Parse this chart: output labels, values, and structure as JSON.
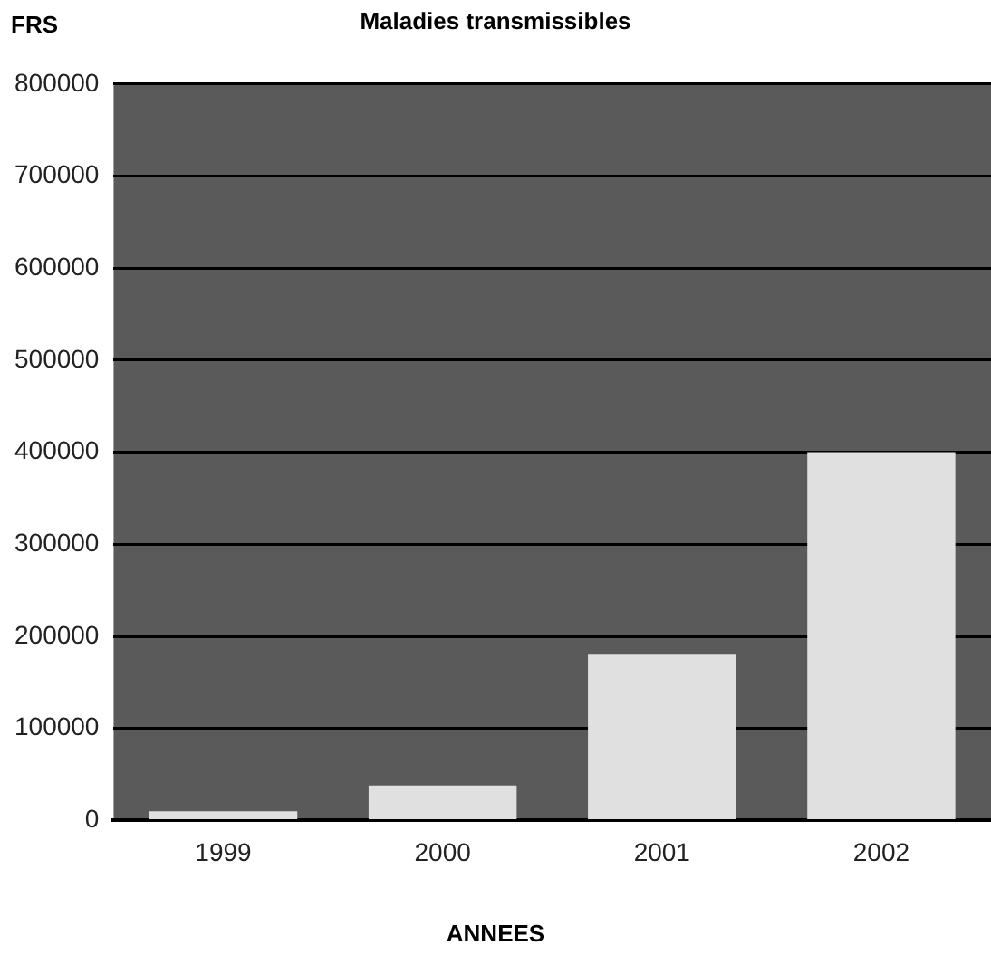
{
  "chart_data": {
    "type": "bar",
    "title": "Maladies transmissibles",
    "ylabel": "FRS",
    "xlabel": "ANNEES",
    "categories": [
      "1999",
      "2000",
      "2001",
      "2002"
    ],
    "values": [
      10000,
      38000,
      180000,
      400000
    ],
    "color": "#e0e0e0",
    "ylim": [
      0,
      800000
    ],
    "yticks": [
      0,
      100000,
      200000,
      300000,
      400000,
      500000,
      600000,
      700000,
      800000
    ],
    "grid": "y",
    "legend": false
  }
}
